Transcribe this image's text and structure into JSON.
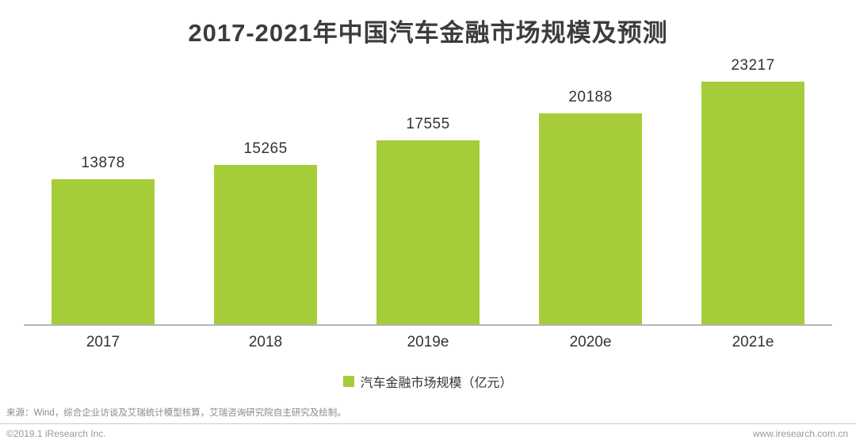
{
  "chart_data": {
    "type": "bar",
    "title": "2017-2021年中国汽车金融市场规模及预测",
    "categories": [
      "2017",
      "2018",
      "2019e",
      "2020e",
      "2021e"
    ],
    "values": [
      13878,
      15265,
      17555,
      20188,
      23217
    ],
    "legend": "汽车金融市场规模（亿元）",
    "xlabel": "",
    "ylabel": "汽车金融市场规模（亿元）",
    "ylim": [
      0,
      25000
    ],
    "grid": false,
    "legend_position": "bottom",
    "bar_color": "#a5cd3a"
  },
  "legend": {
    "label": "汽车金融市场规模（亿元）",
    "swatch_color": "#a5cd3a"
  },
  "footer": {
    "source": "来源：Wind，综合企业访谈及艾瑞统计模型核算，艾瑞咨询研究院自主研究及绘制。",
    "copyright": "©2019.1 iResearch Inc.",
    "website": "www.iresearch.com.cn"
  }
}
